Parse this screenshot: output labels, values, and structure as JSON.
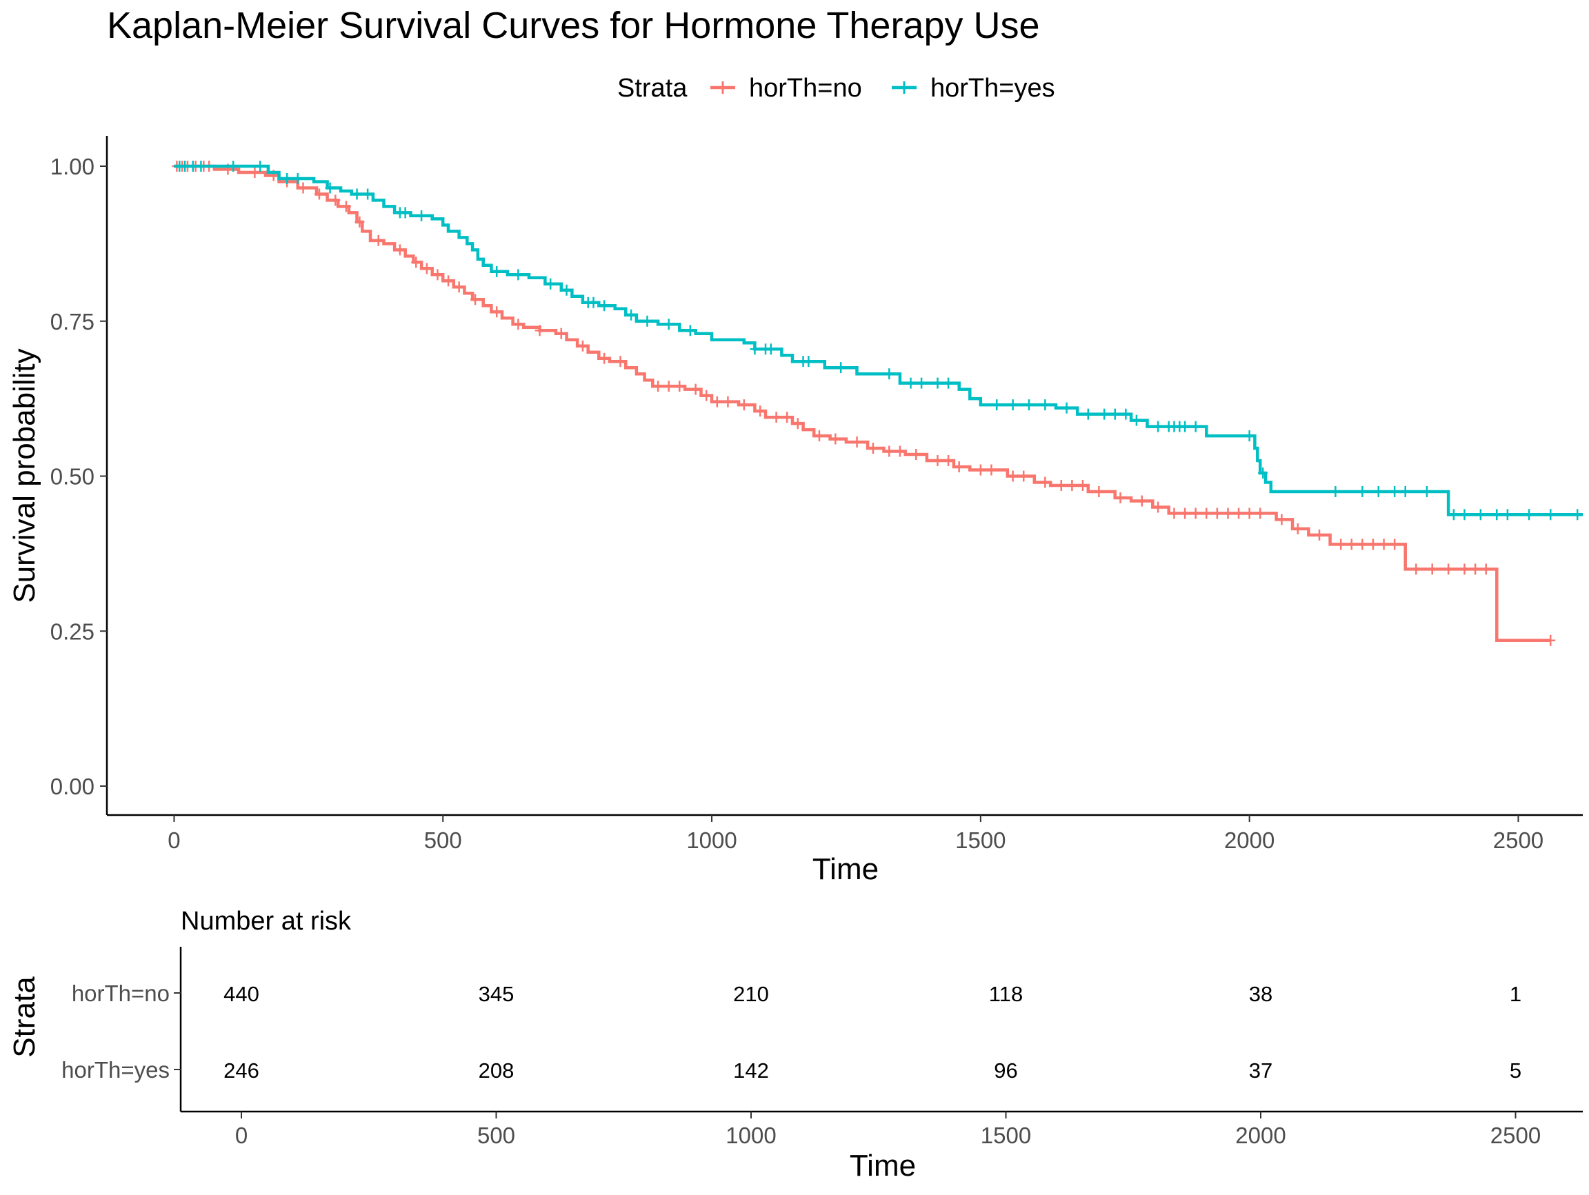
{
  "chart_data": {
    "type": "line",
    "title": "Kaplan-Meier Survival Curves for Hormone Therapy Use",
    "legend": {
      "title": "Strata",
      "placement": "top"
    },
    "xlabel": "Time",
    "ylabel": "Survival probability",
    "xlim": [
      -125,
      2620
    ],
    "ylim": [
      -0.05,
      1.05
    ],
    "xticks": [
      0,
      500,
      1000,
      1500,
      2000,
      2500
    ],
    "yticks": [
      0.0,
      0.25,
      0.5,
      0.75,
      1.0
    ],
    "ytick_labels": [
      "0.00",
      "0.25",
      "0.50",
      "0.75",
      "1.00"
    ],
    "grid": false,
    "series": [
      {
        "name": "horTh=no",
        "color": "#F8766D",
        "steps": [
          [
            0,
            1.0
          ],
          [
            75,
            0.995
          ],
          [
            120,
            0.99
          ],
          [
            170,
            0.985
          ],
          [
            195,
            0.975
          ],
          [
            230,
            0.965
          ],
          [
            265,
            0.955
          ],
          [
            285,
            0.945
          ],
          [
            305,
            0.935
          ],
          [
            325,
            0.925
          ],
          [
            340,
            0.91
          ],
          [
            350,
            0.895
          ],
          [
            365,
            0.88
          ],
          [
            390,
            0.875
          ],
          [
            410,
            0.865
          ],
          [
            430,
            0.855
          ],
          [
            445,
            0.845
          ],
          [
            460,
            0.835
          ],
          [
            480,
            0.825
          ],
          [
            500,
            0.815
          ],
          [
            520,
            0.805
          ],
          [
            540,
            0.795
          ],
          [
            555,
            0.785
          ],
          [
            575,
            0.775
          ],
          [
            590,
            0.765
          ],
          [
            610,
            0.755
          ],
          [
            630,
            0.745
          ],
          [
            650,
            0.74
          ],
          [
            680,
            0.735
          ],
          [
            710,
            0.73
          ],
          [
            730,
            0.72
          ],
          [
            750,
            0.71
          ],
          [
            770,
            0.7
          ],
          [
            790,
            0.69
          ],
          [
            810,
            0.685
          ],
          [
            840,
            0.675
          ],
          [
            860,
            0.665
          ],
          [
            875,
            0.655
          ],
          [
            890,
            0.645
          ],
          [
            950,
            0.64
          ],
          [
            980,
            0.63
          ],
          [
            1000,
            0.62
          ],
          [
            1050,
            0.615
          ],
          [
            1080,
            0.605
          ],
          [
            1100,
            0.595
          ],
          [
            1150,
            0.585
          ],
          [
            1170,
            0.575
          ],
          [
            1190,
            0.565
          ],
          [
            1220,
            0.56
          ],
          [
            1250,
            0.555
          ],
          [
            1290,
            0.545
          ],
          [
            1320,
            0.54
          ],
          [
            1360,
            0.535
          ],
          [
            1400,
            0.525
          ],
          [
            1450,
            0.515
          ],
          [
            1480,
            0.51
          ],
          [
            1550,
            0.5
          ],
          [
            1600,
            0.49
          ],
          [
            1630,
            0.485
          ],
          [
            1700,
            0.475
          ],
          [
            1750,
            0.465
          ],
          [
            1780,
            0.46
          ],
          [
            1820,
            0.45
          ],
          [
            1850,
            0.44
          ],
          [
            2050,
            0.43
          ],
          [
            2080,
            0.415
          ],
          [
            2110,
            0.405
          ],
          [
            2150,
            0.39
          ],
          [
            2290,
            0.35
          ],
          [
            2460,
            0.235
          ],
          [
            2560,
            0.235
          ]
        ],
        "censored_x": [
          5,
          15,
          25,
          40,
          55,
          65,
          100,
          150,
          185,
          210,
          240,
          270,
          300,
          320,
          345,
          380,
          420,
          450,
          470,
          490,
          510,
          530,
          560,
          600,
          640,
          680,
          720,
          760,
          800,
          830,
          900,
          920,
          940,
          970,
          990,
          1010,
          1030,
          1060,
          1090,
          1120,
          1140,
          1160,
          1200,
          1230,
          1270,
          1300,
          1330,
          1350,
          1380,
          1420,
          1440,
          1460,
          1500,
          1520,
          1560,
          1580,
          1620,
          1650,
          1670,
          1690,
          1720,
          1760,
          1800,
          1830,
          1860,
          1880,
          1900,
          1920,
          1940,
          1960,
          1980,
          2000,
          2020,
          2060,
          2090,
          2130,
          2170,
          2190,
          2210,
          2230,
          2250,
          2270,
          2310,
          2340,
          2370,
          2400,
          2420,
          2440,
          2560
        ]
      },
      {
        "name": "horTh=yes",
        "color": "#00BFC4",
        "steps": [
          [
            0,
            1.0
          ],
          [
            175,
            0.99
          ],
          [
            195,
            0.98
          ],
          [
            260,
            0.975
          ],
          [
            285,
            0.965
          ],
          [
            310,
            0.96
          ],
          [
            330,
            0.955
          ],
          [
            370,
            0.945
          ],
          [
            390,
            0.935
          ],
          [
            410,
            0.925
          ],
          [
            440,
            0.92
          ],
          [
            480,
            0.915
          ],
          [
            500,
            0.905
          ],
          [
            510,
            0.895
          ],
          [
            530,
            0.885
          ],
          [
            545,
            0.875
          ],
          [
            555,
            0.865
          ],
          [
            565,
            0.85
          ],
          [
            575,
            0.84
          ],
          [
            590,
            0.83
          ],
          [
            620,
            0.825
          ],
          [
            660,
            0.82
          ],
          [
            690,
            0.81
          ],
          [
            720,
            0.8
          ],
          [
            740,
            0.79
          ],
          [
            760,
            0.78
          ],
          [
            790,
            0.775
          ],
          [
            820,
            0.77
          ],
          [
            840,
            0.76
          ],
          [
            860,
            0.75
          ],
          [
            900,
            0.745
          ],
          [
            940,
            0.735
          ],
          [
            970,
            0.73
          ],
          [
            1000,
            0.72
          ],
          [
            1060,
            0.715
          ],
          [
            1080,
            0.705
          ],
          [
            1130,
            0.695
          ],
          [
            1150,
            0.685
          ],
          [
            1210,
            0.675
          ],
          [
            1270,
            0.665
          ],
          [
            1350,
            0.65
          ],
          [
            1460,
            0.64
          ],
          [
            1480,
            0.625
          ],
          [
            1500,
            0.615
          ],
          [
            1640,
            0.61
          ],
          [
            1680,
            0.6
          ],
          [
            1780,
            0.59
          ],
          [
            1810,
            0.58
          ],
          [
            1920,
            0.565
          ],
          [
            2010,
            0.545
          ],
          [
            2015,
            0.525
          ],
          [
            2020,
            0.505
          ],
          [
            2030,
            0.49
          ],
          [
            2040,
            0.475
          ],
          [
            2370,
            0.438
          ],
          [
            2620,
            0.438
          ]
        ],
        "censored_x": [
          10,
          20,
          35,
          50,
          110,
          160,
          210,
          230,
          290,
          340,
          360,
          420,
          430,
          460,
          600,
          640,
          700,
          730,
          770,
          780,
          800,
          850,
          880,
          920,
          960,
          1080,
          1100,
          1110,
          1170,
          1180,
          1240,
          1330,
          1370,
          1390,
          1420,
          1440,
          1530,
          1560,
          1590,
          1620,
          1660,
          1700,
          1730,
          1750,
          1770,
          1790,
          1830,
          1850,
          1860,
          1870,
          1880,
          1900,
          2000,
          2025,
          2160,
          2210,
          2240,
          2270,
          2290,
          2330,
          2380,
          2400,
          2430,
          2460,
          2480,
          2520,
          2560,
          2610
        ]
      }
    ],
    "risk_table": {
      "title": "Number at risk",
      "ylabel": "Strata",
      "xlabel": "Time",
      "times": [
        0,
        500,
        1000,
        1500,
        2000,
        2500
      ],
      "rows": [
        {
          "name": "horTh=no",
          "counts": [
            440,
            345,
            210,
            118,
            38,
            1
          ]
        },
        {
          "name": "horTh=yes",
          "counts": [
            246,
            208,
            142,
            96,
            37,
            5
          ]
        }
      ]
    }
  }
}
